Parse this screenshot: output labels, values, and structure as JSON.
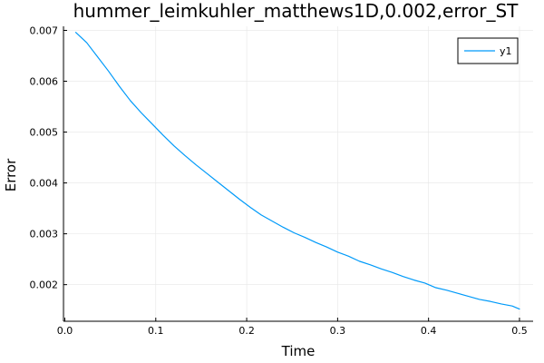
{
  "chart_data": {
    "type": "line",
    "title": "hummer_leimkuhler_matthews1D,0.002,error_ST",
    "xlabel": "Time",
    "ylabel": "Error",
    "xlim": [
      -0.0015,
      0.515
    ],
    "ylim": [
      0.00128,
      0.00708
    ],
    "xticks": [
      0.0,
      0.1,
      0.2,
      0.3,
      0.4,
      0.5
    ],
    "xtick_labels": [
      "0.0",
      "0.1",
      "0.2",
      "0.3",
      "0.4",
      "0.5"
    ],
    "yticks": [
      0.002,
      0.003,
      0.004,
      0.005,
      0.006,
      0.007
    ],
    "ytick_labels": [
      "0.002",
      "0.003",
      "0.004",
      "0.005",
      "0.006",
      "0.007"
    ],
    "grid": true,
    "legend_position": "top-right",
    "series": [
      {
        "name": "y1",
        "color": "#009af9",
        "x": [
          0.012,
          0.024,
          0.036,
          0.048,
          0.06,
          0.072,
          0.084,
          0.096,
          0.108,
          0.12,
          0.132,
          0.144,
          0.156,
          0.168,
          0.18,
          0.192,
          0.204,
          0.216,
          0.228,
          0.24,
          0.252,
          0.264,
          0.276,
          0.288,
          0.3,
          0.312,
          0.324,
          0.336,
          0.348,
          0.36,
          0.372,
          0.384,
          0.396,
          0.408,
          0.42,
          0.432,
          0.444,
          0.456,
          0.468,
          0.48,
          0.492,
          0.5
        ],
        "y": [
          0.00696,
          0.00676,
          0.00648,
          0.0062,
          0.0059,
          0.00562,
          0.00538,
          0.00516,
          0.00494,
          0.00473,
          0.00454,
          0.00436,
          0.00419,
          0.00402,
          0.00385,
          0.00368,
          0.00352,
          0.00337,
          0.00325,
          0.00313,
          0.00302,
          0.00293,
          0.00283,
          0.00274,
          0.00264,
          0.00256,
          0.00246,
          0.00239,
          0.00231,
          0.00224,
          0.00216,
          0.00209,
          0.00203,
          0.00194,
          0.00189,
          0.00183,
          0.00177,
          0.00171,
          0.00167,
          0.00162,
          0.00158,
          0.00152
        ]
      }
    ]
  }
}
